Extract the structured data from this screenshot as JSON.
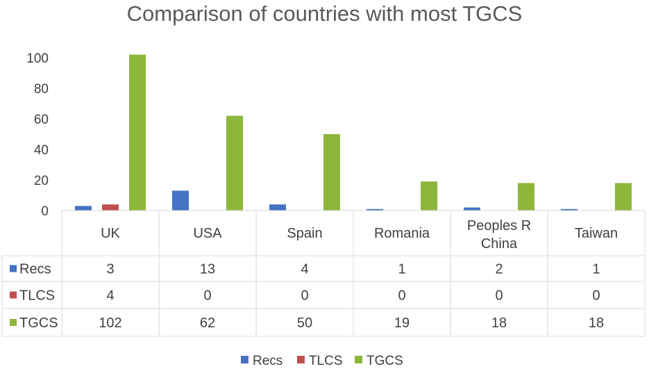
{
  "chart_data": {
    "type": "bar",
    "title": "Comparison of countries with most TGCS",
    "categories": [
      "UK",
      "USA",
      "Spain",
      "Romania",
      "Peoples R China",
      "Taiwan"
    ],
    "category_lines": [
      [
        "UK"
      ],
      [
        "USA"
      ],
      [
        "Spain"
      ],
      [
        "Romania"
      ],
      [
        "Peoples R",
        "China"
      ],
      [
        "Taiwan"
      ]
    ],
    "series": [
      {
        "name": "Recs",
        "color": "#4472C4",
        "values": [
          3,
          13,
          4,
          1,
          2,
          1
        ]
      },
      {
        "name": "TLCS",
        "color": "#C0504D",
        "values": [
          4,
          0,
          0,
          0,
          0,
          0
        ]
      },
      {
        "name": "TGCS",
        "color": "#8DB63C",
        "values": [
          102,
          62,
          50,
          19,
          18,
          18
        ]
      }
    ],
    "ylim": [
      0,
      100
    ],
    "yticks": [
      0,
      20,
      40,
      60,
      80,
      100
    ],
    "grid": false,
    "data_table": true,
    "legend": "bottom"
  }
}
